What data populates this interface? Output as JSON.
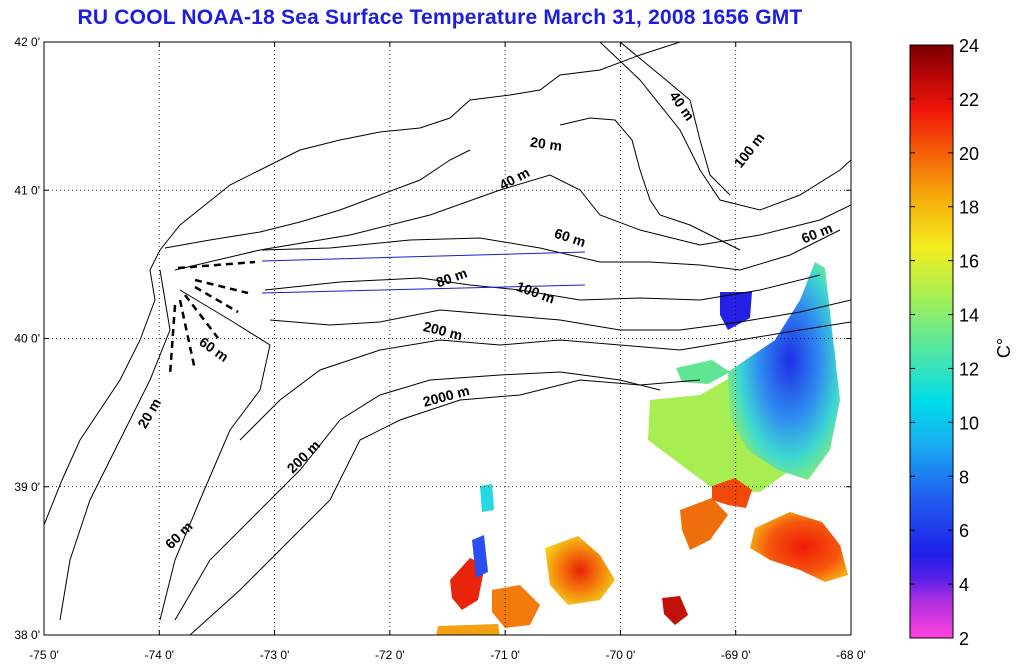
{
  "title": "RU COOL  NOAA-18 Sea Surface Temperature March 31, 2008 1656 GMT",
  "map": {
    "lon_range": [
      -75,
      -68
    ],
    "lat_range": [
      38,
      42
    ],
    "lon_ticks": [
      {
        "v": -75,
        "label": "-75 0'"
      },
      {
        "v": -74,
        "label": "-74 0'"
      },
      {
        "v": -73,
        "label": "-73 0'"
      },
      {
        "v": -72,
        "label": "-72 0'"
      },
      {
        "v": -71,
        "label": "-71 0'"
      },
      {
        "v": -70,
        "label": "-70 0'"
      },
      {
        "v": -69,
        "label": "-69 0'"
      },
      {
        "v": -68,
        "label": "-68 0'"
      }
    ],
    "lat_ticks": [
      {
        "v": 38,
        "label": "38 0'"
      },
      {
        "v": 39,
        "label": "39 0'"
      },
      {
        "v": 40,
        "label": "40 0'"
      },
      {
        "v": 41,
        "label": "41 0'"
      },
      {
        "v": 42,
        "label": "42 0'"
      }
    ],
    "grid": "dotted",
    "contour_labels": [
      {
        "text": "20 m",
        "lon": -70.65,
        "lat": 41.28,
        "rot": 8
      },
      {
        "text": "40 m",
        "lon": -70.9,
        "lat": 41.05,
        "rot": -28
      },
      {
        "text": "40 m",
        "lon": -69.5,
        "lat": 41.55,
        "rot": 55
      },
      {
        "text": "100 m",
        "lon": -68.85,
        "lat": 41.25,
        "rot": -52
      },
      {
        "text": "60 m",
        "lon": -70.45,
        "lat": 40.65,
        "rot": 18
      },
      {
        "text": "60 m",
        "lon": -68.28,
        "lat": 40.68,
        "rot": -22
      },
      {
        "text": "80 m",
        "lon": -71.45,
        "lat": 40.38,
        "rot": -20
      },
      {
        "text": "100 m",
        "lon": -70.75,
        "lat": 40.28,
        "rot": 20
      },
      {
        "text": "200 m",
        "lon": -71.55,
        "lat": 40.02,
        "rot": 14
      },
      {
        "text": "2000 m",
        "lon": -71.5,
        "lat": 39.58,
        "rot": -15
      },
      {
        "text": "60 m",
        "lon": -73.55,
        "lat": 39.9,
        "rot": 35
      },
      {
        "text": "20 m",
        "lon": -74.05,
        "lat": 39.48,
        "rot": -60
      },
      {
        "text": "200 m",
        "lon": -72.72,
        "lat": 39.18,
        "rot": -45
      },
      {
        "text": "60 m",
        "lon": -73.8,
        "lat": 38.65,
        "rot": -45
      }
    ],
    "land_color": "#ffffff",
    "contour_color": "#000000",
    "transect_color": "#1b1bd0"
  },
  "colorbar": {
    "min": 2,
    "max": 24,
    "ticks": [
      "24",
      "22",
      "20",
      "18",
      "16",
      "14",
      "12",
      "10",
      "8",
      "6",
      "4",
      "2"
    ],
    "unit_label": "C°",
    "colormap": [
      "#ff44dd",
      "#9a24e0",
      "#1e1ee8",
      "#2a7ef0",
      "#00d8ec",
      "#5ae89a",
      "#c8f040",
      "#f5e81e",
      "#f39a0a",
      "#f0200a",
      "#b60606",
      "#780000"
    ]
  }
}
